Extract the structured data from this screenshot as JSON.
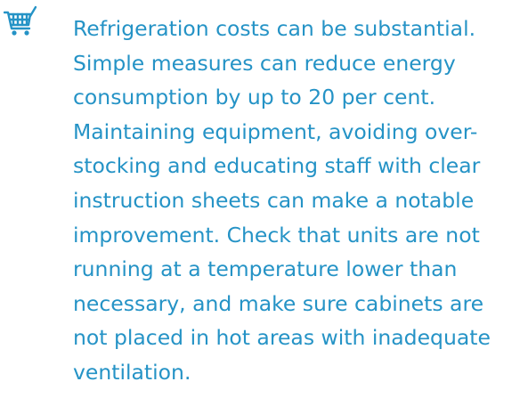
{
  "paragraph": {
    "lines": [
      "Refrigeration costs can be substantial.",
      "Simple measures can reduce energy",
      "consumption by up to 20 per cent.",
      "Maintaining equipment, avoiding over-",
      "stocking and educating staff with clear",
      "instruction sheets can make a notable",
      "improvement. Check that units are not",
      "running at a temperature lower than",
      "necessary, and make sure cabinets are",
      "not placed in hot areas with inadequate",
      "ventilation."
    ]
  }
}
